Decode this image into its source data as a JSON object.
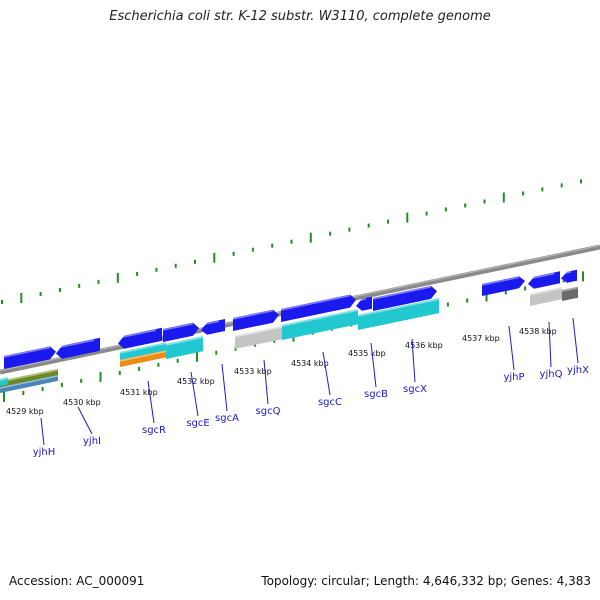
{
  "title": "Escherichia coli str. K-12 substr. W3110, complete genome",
  "footer": {
    "accession_label": "Accession:",
    "accession": "AC_000091",
    "topology_label": "Topology:",
    "topology": "circular",
    "length_label": "Length:",
    "length": "4,646,332 bp",
    "genes_label": "Genes:",
    "genes": "4,383"
  },
  "colors": {
    "gene_forward": "#1a1aee",
    "backbone": "#8a8a8a",
    "tick": "#1f8f1f",
    "label": "#1a1acc",
    "cyan": "#22c8d0",
    "orange": "#f08a10",
    "olive": "#6b8a1e",
    "steel": "#4a86b8",
    "light_gray": "#c4c4c4",
    "dark_gray": "#6a6a6a"
  },
  "kbp_labels": [
    "4529 kbp",
    "4530 kbp",
    "4531 kbp",
    "4532 kbp",
    "4533 kbp",
    "4534 kbp",
    "4535 kbp",
    "4536 kbp",
    "4537 kbp",
    "4538 kbp"
  ],
  "gene_labels": [
    "yjhH",
    "yjhI",
    "sgcR",
    "sgcE",
    "sgcA",
    "sgcQ",
    "sgcC",
    "sgcB",
    "sgcX",
    "yjhP",
    "yjhQ",
    "yjhX"
  ]
}
